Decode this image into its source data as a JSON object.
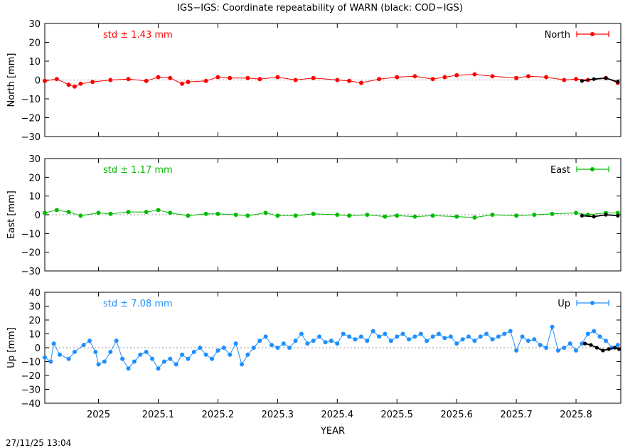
{
  "title": "IGS−IGS: Coordinate repeatability of WARN (black: COD−IGS)",
  "timestamp": "27/11/25 13:04",
  "xlabel": "YEAR",
  "x_ticks": [
    2025,
    2025.1,
    2025.2,
    2025.3,
    2025.4,
    2025.5,
    2025.6,
    2025.7,
    2025.8
  ],
  "x_tick_labels": [
    "2025",
    "2025.1",
    "2025.2",
    "2025.3",
    "2025.4",
    "2025.5",
    "2025.6",
    "2025.7",
    "2025.8"
  ],
  "xlim": [
    2024.91,
    2025.875
  ],
  "chart_data": [
    {
      "type": "line",
      "panel": "north",
      "ylabel": "North [mm]",
      "ylim": [
        -30,
        30
      ],
      "yticks": [
        30,
        20,
        10,
        0,
        -10,
        -20,
        -30
      ],
      "ytick_labels": [
        "30",
        "20",
        "10",
        "0",
        "−10",
        "−20",
        "−30"
      ],
      "std_label": "std ± 1.43 mm",
      "legend": "North",
      "legend_position": "top-right",
      "zero_line": true,
      "color": "#ff0000",
      "series": [
        {
          "name": "North",
          "x": [
            2024.91,
            2024.93,
            2024.95,
            2024.96,
            2024.97,
            2024.99,
            2025.02,
            2025.05,
            2025.08,
            2025.1,
            2025.12,
            2025.14,
            2025.15,
            2025.18,
            2025.2,
            2025.22,
            2025.25,
            2025.27,
            2025.3,
            2025.33,
            2025.36,
            2025.4,
            2025.42,
            2025.44,
            2025.47,
            2025.5,
            2025.53,
            2025.56,
            2025.58,
            2025.6,
            2025.63,
            2025.66,
            2025.7,
            2025.72,
            2025.75,
            2025.78,
            2025.8,
            2025.82,
            2025.85,
            2025.87
          ],
          "values": [
            -0.5,
            0.5,
            -2.5,
            -3.5,
            -2,
            -1,
            0,
            0.5,
            -0.5,
            1.5,
            1,
            -2,
            -1,
            -0.5,
            1.5,
            1,
            1,
            0.5,
            1.5,
            0,
            1,
            0,
            -0.5,
            -1.5,
            0.5,
            1.5,
            2,
            0.5,
            1.5,
            2.5,
            3,
            2,
            1,
            2,
            1.5,
            0,
            0.5,
            0,
            1,
            -1.5
          ]
        },
        {
          "name": "COD−IGS",
          "x": [
            2025.81,
            2025.83,
            2025.85,
            2025.87
          ],
          "values": [
            -0.5,
            0.5,
            1,
            -1
          ]
        }
      ]
    },
    {
      "type": "line",
      "panel": "east",
      "ylabel": "East [mm]",
      "ylim": [
        -30,
        30
      ],
      "yticks": [
        30,
        20,
        10,
        0,
        -10,
        -20,
        -30
      ],
      "ytick_labels": [
        "30",
        "20",
        "10",
        "0",
        "−10",
        "−20",
        "−30"
      ],
      "std_label": "std ± 1.17 mm",
      "legend": "East",
      "legend_position": "top-right",
      "zero_line": true,
      "color": "#00bb00",
      "series": [
        {
          "name": "East",
          "x": [
            2024.91,
            2024.93,
            2024.95,
            2024.97,
            2025.0,
            2025.02,
            2025.05,
            2025.08,
            2025.1,
            2025.12,
            2025.15,
            2025.18,
            2025.2,
            2025.23,
            2025.25,
            2025.28,
            2025.3,
            2025.33,
            2025.36,
            2025.4,
            2025.42,
            2025.45,
            2025.48,
            2025.5,
            2025.53,
            2025.56,
            2025.6,
            2025.63,
            2025.66,
            2025.7,
            2025.73,
            2025.76,
            2025.8,
            2025.82,
            2025.85,
            2025.87
          ],
          "values": [
            1,
            2.5,
            1.5,
            -0.5,
            1,
            0.5,
            1.5,
            1.5,
            2.5,
            1,
            -0.5,
            0.5,
            0.5,
            0,
            -0.5,
            1,
            -0.5,
            -0.5,
            0.5,
            0,
            -0.5,
            0,
            -1,
            -0.5,
            -1,
            -0.5,
            -1,
            -1.5,
            0,
            -0.5,
            0,
            0.5,
            1,
            0,
            1,
            1
          ]
        },
        {
          "name": "COD−IGS",
          "x": [
            2025.81,
            2025.83,
            2025.85,
            2025.87
          ],
          "values": [
            -0.5,
            -1,
            0,
            -0.5
          ]
        }
      ]
    },
    {
      "type": "line",
      "panel": "up",
      "ylabel": "Up [mm]",
      "ylim": [
        -40,
        40
      ],
      "yticks": [
        40,
        30,
        20,
        10,
        0,
        -10,
        -20,
        -30,
        -40
      ],
      "ytick_labels": [
        "40",
        "30",
        "20",
        "10",
        "0",
        "−10",
        "−20",
        "−30",
        "−40"
      ],
      "std_label": "std ± 7.08 mm",
      "legend": "Up",
      "legend_position": "top-right",
      "zero_line": true,
      "color": "#1e8fff",
      "series": [
        {
          "name": "Up",
          "x": [
            2024.91,
            2024.92,
            2024.925,
            2024.935,
            2024.95,
            2024.96,
            2024.975,
            2024.985,
            2024.995,
            2025.0,
            2025.01,
            2025.02,
            2025.03,
            2025.04,
            2025.05,
            2025.06,
            2025.07,
            2025.08,
            2025.09,
            2025.1,
            2025.11,
            2025.12,
            2025.13,
            2025.14,
            2025.15,
            2025.16,
            2025.17,
            2025.18,
            2025.19,
            2025.2,
            2025.21,
            2025.22,
            2025.23,
            2025.24,
            2025.25,
            2025.26,
            2025.27,
            2025.28,
            2025.29,
            2025.3,
            2025.31,
            2025.32,
            2025.33,
            2025.34,
            2025.35,
            2025.36,
            2025.37,
            2025.38,
            2025.39,
            2025.4,
            2025.41,
            2025.42,
            2025.43,
            2025.44,
            2025.45,
            2025.46,
            2025.47,
            2025.48,
            2025.49,
            2025.5,
            2025.51,
            2025.52,
            2025.53,
            2025.54,
            2025.55,
            2025.56,
            2025.57,
            2025.58,
            2025.59,
            2025.6,
            2025.61,
            2025.62,
            2025.63,
            2025.64,
            2025.65,
            2025.66,
            2025.67,
            2025.68,
            2025.69,
            2025.7,
            2025.71,
            2025.72,
            2025.73,
            2025.74,
            2025.75,
            2025.76,
            2025.77,
            2025.78,
            2025.79,
            2025.8,
            2025.81,
            2025.82,
            2025.83,
            2025.84,
            2025.85,
            2025.86,
            2025.87
          ],
          "values": [
            -7,
            -10,
            3,
            -5,
            -8,
            -3,
            2,
            5,
            -3,
            -12,
            -10,
            -3,
            5,
            -8,
            -15,
            -10,
            -5,
            -3,
            -8,
            -15,
            -10,
            -8,
            -12,
            -5,
            -8,
            -3,
            0,
            -5,
            -8,
            -2,
            0,
            -5,
            3,
            -12,
            -5,
            0,
            5,
            8,
            2,
            0,
            3,
            0,
            5,
            10,
            3,
            5,
            8,
            4,
            5,
            3,
            10,
            8,
            6,
            8,
            5,
            12,
            8,
            10,
            5,
            8,
            10,
            6,
            8,
            10,
            5,
            8,
            10,
            7,
            8,
            3,
            6,
            8,
            5,
            8,
            10,
            6,
            8,
            10,
            12,
            -2,
            8,
            5,
            6,
            2,
            0,
            15,
            -2,
            0,
            3,
            -2,
            3,
            10,
            12,
            8,
            5,
            0,
            2
          ]
        },
        {
          "name": "COD−IGS",
          "x": [
            2025.815,
            2025.825,
            2025.835,
            2025.845,
            2025.855,
            2025.865,
            2025.872
          ],
          "values": [
            3,
            2,
            0,
            -2,
            -1,
            0,
            -1
          ]
        }
      ]
    }
  ]
}
